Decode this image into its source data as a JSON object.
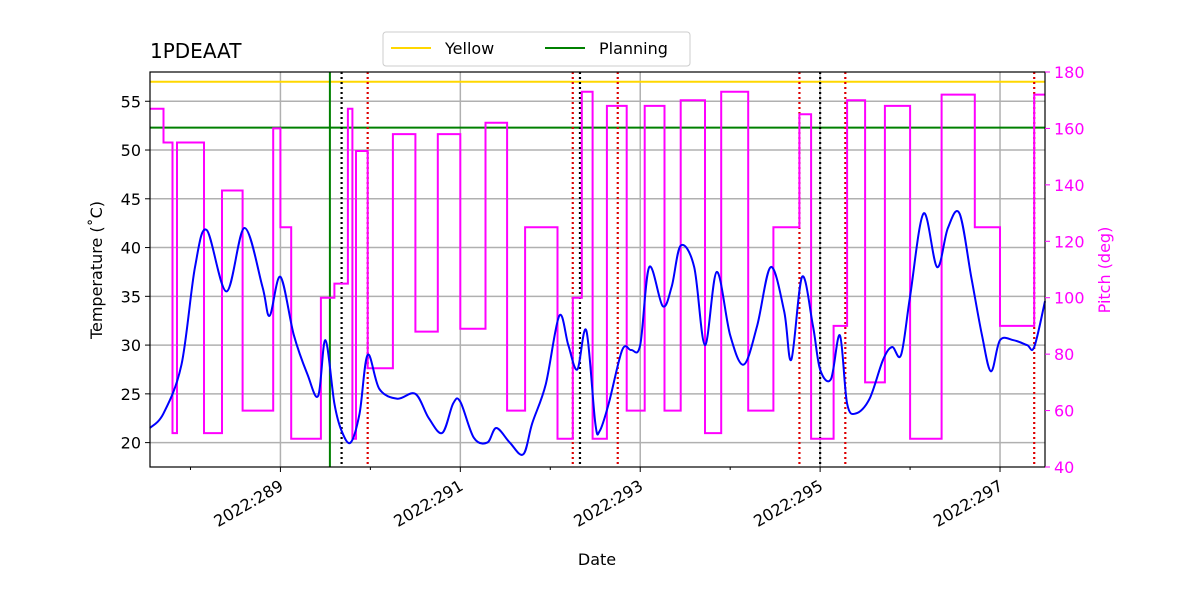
{
  "chart_data": {
    "type": "line",
    "title": "1PDEAAT",
    "xlabel": "Date",
    "ylabel": "Temperature ($^\\circ$C)",
    "ylabel_display": "Temperature (˚C)",
    "y2label": "Pitch (deg)",
    "xlim": [
      287.55,
      297.5
    ],
    "ylim": [
      17.5,
      58.0
    ],
    "y2lim": [
      40,
      180
    ],
    "xticks": [
      289,
      291,
      293,
      295,
      297
    ],
    "xtick_labels": [
      "2022:289",
      "2022:291",
      "2022:293",
      "2022:295",
      "2022:297"
    ],
    "yticks": [
      20,
      25,
      30,
      35,
      40,
      45,
      50,
      55
    ],
    "ytick_labels": [
      "20",
      "25",
      "30",
      "35",
      "40",
      "45",
      "50",
      "55"
    ],
    "y2ticks": [
      40,
      60,
      80,
      100,
      120,
      140,
      160,
      180
    ],
    "y2tick_labels": [
      "40",
      "60",
      "80",
      "100",
      "120",
      "140",
      "160",
      "180"
    ],
    "grid": true,
    "legend": {
      "placement": "top-center",
      "entries": [
        "Yellow",
        "Planning"
      ]
    },
    "limits": [
      {
        "name": "Yellow",
        "value": 57.0,
        "color": "#ffd700"
      },
      {
        "name": "Planning",
        "value": 52.3,
        "color": "#008000"
      }
    ],
    "planning_vline_x": 289.55,
    "black_vlines_x": [
      289.68,
      292.33,
      295.0
    ],
    "red_vlines_x": [
      289.97,
      292.25,
      292.75,
      294.77,
      295.28,
      297.38
    ],
    "temperature_series": {
      "name": "Temperature",
      "color": "#0000ff",
      "x": [
        287.55,
        287.7,
        287.9,
        288.05,
        288.18,
        288.4,
        288.6,
        288.8,
        288.88,
        289.0,
        289.15,
        289.3,
        289.42,
        289.5,
        289.6,
        289.68,
        289.78,
        289.88,
        289.97,
        290.1,
        290.3,
        290.5,
        290.65,
        290.8,
        290.92,
        291.0,
        291.15,
        291.3,
        291.4,
        291.55,
        291.7,
        291.8,
        291.95,
        292.1,
        292.2,
        292.3,
        292.4,
        292.5,
        292.55,
        292.65,
        292.8,
        292.9,
        293.0,
        293.1,
        293.25,
        293.35,
        293.45,
        293.6,
        293.72,
        293.85,
        294.0,
        294.15,
        294.3,
        294.45,
        294.6,
        294.68,
        294.8,
        294.92,
        295.0,
        295.12,
        295.22,
        295.3,
        295.4,
        295.55,
        295.7,
        295.8,
        295.9,
        296.0,
        296.15,
        296.3,
        296.42,
        296.55,
        296.68,
        296.8,
        296.9,
        297.0,
        297.15,
        297.3,
        297.38,
        297.5
      ],
      "y": [
        21.5,
        23.0,
        28.0,
        38.0,
        41.8,
        35.5,
        42.0,
        36.0,
        33.0,
        37.0,
        31.0,
        27.0,
        24.8,
        30.5,
        24.0,
        21.2,
        20.0,
        23.0,
        29.0,
        25.5,
        24.5,
        25.0,
        22.5,
        21.0,
        24.0,
        24.2,
        20.5,
        20.0,
        21.5,
        20.0,
        18.8,
        22.0,
        26.0,
        33.0,
        30.0,
        27.5,
        31.5,
        22.0,
        21.2,
        24.0,
        29.5,
        29.5,
        30.0,
        38.0,
        34.0,
        36.0,
        40.2,
        38.0,
        30.0,
        37.5,
        31.0,
        28.0,
        32.0,
        38.0,
        33.5,
        28.5,
        37.0,
        32.0,
        27.5,
        26.5,
        31.0,
        24.0,
        23.0,
        24.5,
        28.5,
        29.8,
        29.0,
        35.0,
        43.5,
        38.0,
        42.0,
        43.5,
        37.0,
        31.0,
        27.3,
        30.5,
        30.5,
        30.0,
        29.8,
        34.5
      ]
    },
    "pitch_series": {
      "name": "Pitch",
      "color": "#ff00ff",
      "axis": "right",
      "x": [
        287.55,
        287.7,
        287.7,
        287.8,
        287.8,
        287.85,
        287.85,
        288.15,
        288.15,
        288.35,
        288.35,
        288.58,
        288.58,
        288.92,
        288.92,
        289.0,
        289.0,
        289.12,
        289.12,
        289.45,
        289.45,
        289.6,
        289.6,
        289.75,
        289.75,
        289.8,
        289.8,
        289.84,
        289.84,
        289.97,
        289.97,
        290.25,
        290.25,
        290.5,
        290.5,
        290.75,
        290.75,
        291.0,
        291.0,
        291.28,
        291.28,
        291.52,
        291.52,
        291.72,
        291.72,
        292.08,
        292.08,
        292.25,
        292.25,
        292.35,
        292.35,
        292.47,
        292.47,
        292.63,
        292.63,
        292.85,
        292.85,
        293.05,
        293.05,
        293.27,
        293.27,
        293.45,
        293.45,
        293.72,
        293.72,
        293.9,
        293.9,
        294.2,
        294.2,
        294.48,
        294.48,
        294.77,
        294.77,
        294.9,
        294.9,
        295.15,
        295.15,
        295.3,
        295.3,
        295.5,
        295.5,
        295.72,
        295.72,
        296.0,
        296.0,
        296.35,
        296.35,
        296.72,
        296.72,
        297.0,
        297.0,
        297.38,
        297.38,
        297.5
      ],
      "y": [
        167,
        167,
        155,
        155,
        52,
        52,
        155,
        155,
        52,
        52,
        138,
        138,
        60,
        60,
        160,
        160,
        125,
        125,
        50,
        50,
        100,
        100,
        105,
        105,
        167,
        167,
        50,
        50,
        152,
        152,
        75,
        75,
        158,
        158,
        88,
        88,
        158,
        158,
        89,
        89,
        162,
        162,
        60,
        60,
        125,
        125,
        50,
        50,
        100,
        100,
        173,
        173,
        50,
        50,
        168,
        168,
        60,
        60,
        168,
        168,
        60,
        60,
        170,
        170,
        52,
        52,
        173,
        173,
        60,
        60,
        125,
        125,
        165,
        165,
        50,
        50,
        90,
        90,
        170,
        170,
        70,
        70,
        168,
        168,
        50,
        50,
        172,
        172,
        125,
        125,
        90,
        90,
        172,
        172
      ]
    }
  }
}
